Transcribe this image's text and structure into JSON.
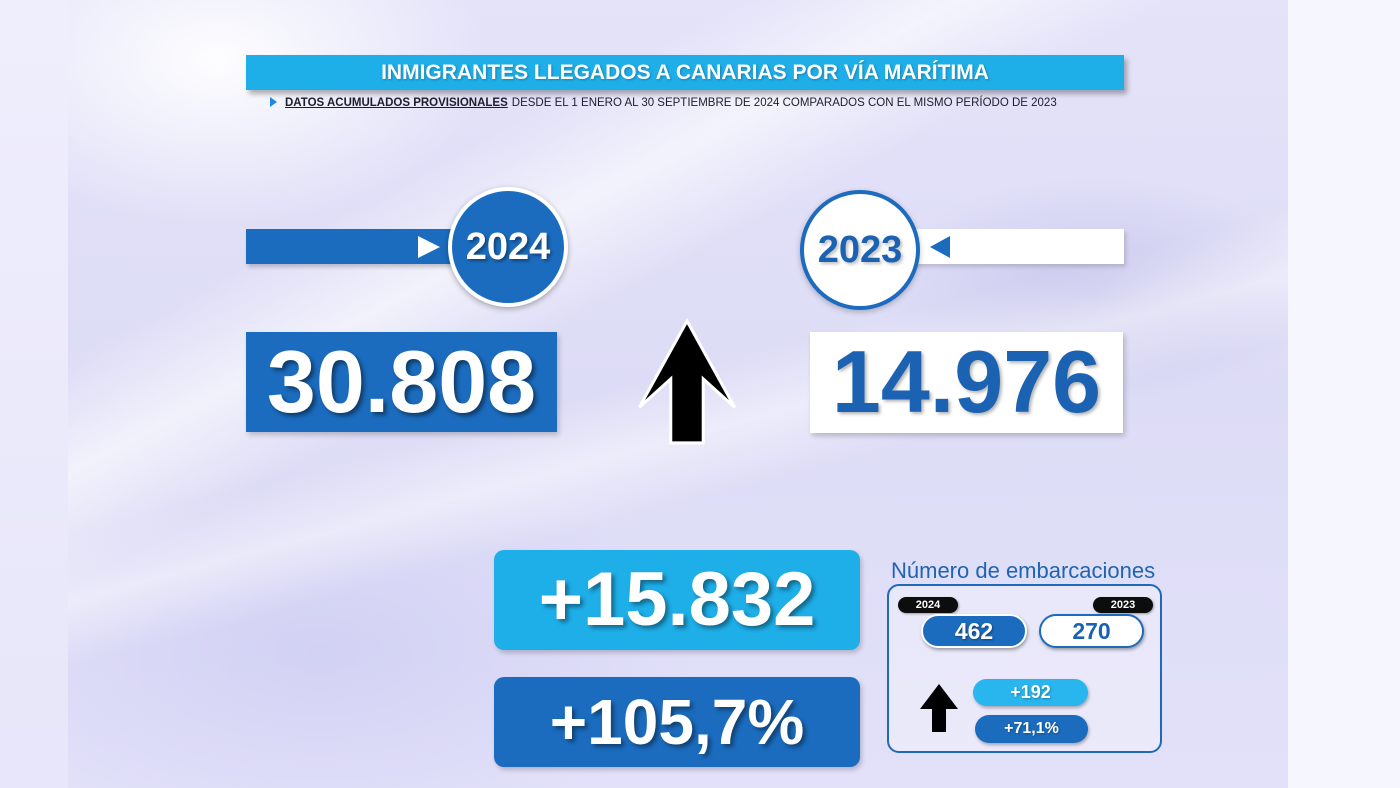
{
  "title": "INMIGRANTES LLEGADOS A CANARIAS POR VÍA MARÍTIMA",
  "subtitle": {
    "marker_icon": "triangle-right-icon",
    "highlight": "DATOS ACUMULADOS PROVISIONALES",
    "text": "DESDE EL 1 ENERO AL 30 SEPTIEMBRE DE 2024 COMPARADOS CON EL MISMO PERÍODO DE 2023"
  },
  "current_year": {
    "year": "2024",
    "pointer_icon": "triangle-right-icon",
    "total": "30.808"
  },
  "previous_year": {
    "year": "2023",
    "pointer_icon": "triangle-left-icon",
    "total": "14.976"
  },
  "trend_icon": "arrow-up-icon",
  "difference": {
    "absolute": "+15.832",
    "percent": "+105,7%"
  },
  "boats": {
    "title": "Número de embarcaciones",
    "current": {
      "year": "2024",
      "value": "462"
    },
    "previous": {
      "year": "2023",
      "value": "270"
    },
    "trend_icon": "arrow-up-icon",
    "difference": {
      "absolute": "+192",
      "percent": "+71,1%"
    }
  },
  "colors": {
    "cyan": "#1eaee8",
    "blue": "#1b6cbf",
    "blue-text": "#1c62b2",
    "pill-dark": "#0d0d0d",
    "arrow": "#000000"
  }
}
